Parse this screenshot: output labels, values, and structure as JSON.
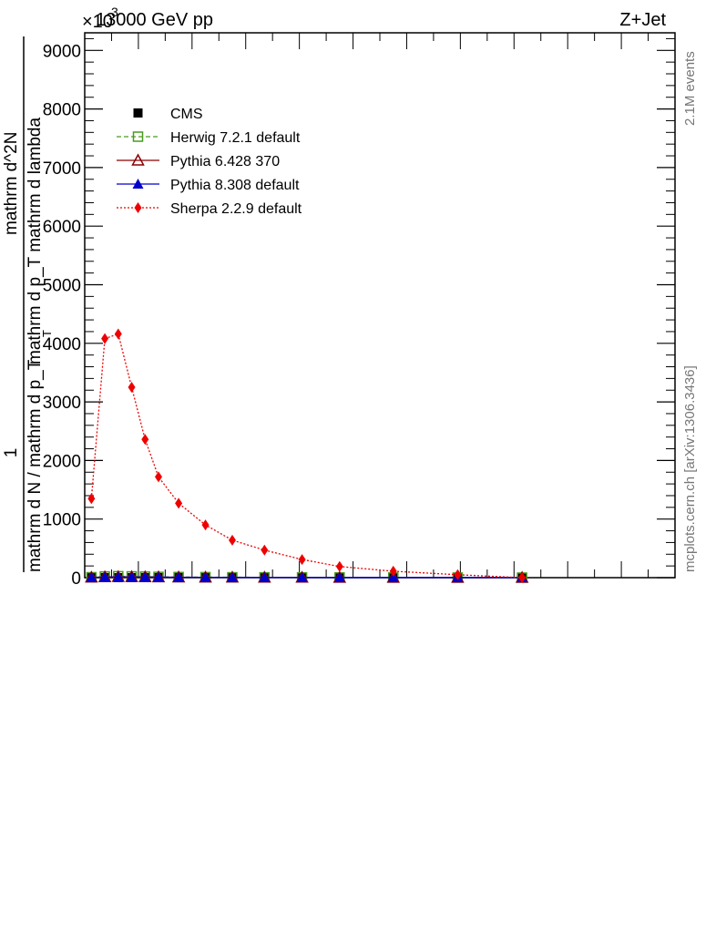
{
  "header": {
    "left": "13000 GeV pp",
    "right": "Z+Jet",
    "multiplier": "×10",
    "multiplier_exp": "3"
  },
  "side_texts": {
    "events": "2.1M events",
    "source": "mcplots.cern.ch [arXiv:1306.3436]"
  },
  "ylabel": {
    "numerator": "1",
    "denominator": "mathrm d N / mathrm d p_T",
    "top_num": "mathrm d^2N",
    "top_den": "mathrm d p_T mathrm d lambda",
    "subscript": "T"
  },
  "chart_data": {
    "type": "line",
    "ylim": [
      0,
      9300
    ],
    "xlim": [
      0,
      1.1
    ],
    "yticks": [
      "0",
      "1000",
      "2000",
      "3000",
      "4000",
      "5000",
      "6000",
      "7000",
      "8000",
      "9000"
    ],
    "x": [
      0.0125,
      0.0375,
      0.0625,
      0.0875,
      0.1125,
      0.1375,
      0.175,
      0.225,
      0.275,
      0.335,
      0.405,
      0.475,
      0.575,
      0.695,
      0.815
    ],
    "legend": {
      "placement": "top-left"
    },
    "series": [
      {
        "name": "CMS",
        "color": "#000000",
        "marker": "square-filled",
        "line": "none",
        "values": [
          0,
          0,
          0,
          0,
          0,
          0,
          0,
          0,
          0,
          0,
          0,
          0,
          0,
          0,
          0
        ]
      },
      {
        "name": "Herwig 7.2.1 default",
        "color": "#4a9a1e",
        "marker": "square-open",
        "line": "dashed",
        "values": [
          8,
          20,
          25,
          22,
          18,
          14,
          11,
          9,
          7,
          6,
          5,
          4,
          3,
          2,
          1
        ]
      },
      {
        "name": "Pythia 6.428 370",
        "color": "#8b0000",
        "marker": "triangle-open",
        "line": "solid",
        "values": [
          5,
          12,
          15,
          14,
          12,
          10,
          8,
          6,
          5,
          4,
          3,
          2,
          2,
          1,
          1
        ]
      },
      {
        "name": "Pythia 8.308 default",
        "color": "#0000cc",
        "marker": "triangle-filled",
        "line": "solid",
        "values": [
          3,
          8,
          10,
          9,
          8,
          7,
          5,
          4,
          3,
          2,
          2,
          1,
          1,
          1,
          0
        ]
      },
      {
        "name": "Sherpa 2.2.9 default",
        "color": "#ee0000",
        "marker": "diamond-filled",
        "line": "dotted",
        "values": [
          1350,
          4080,
          4160,
          3250,
          2360,
          1720,
          1270,
          900,
          640,
          470,
          310,
          190,
          110,
          50,
          0
        ]
      }
    ]
  }
}
